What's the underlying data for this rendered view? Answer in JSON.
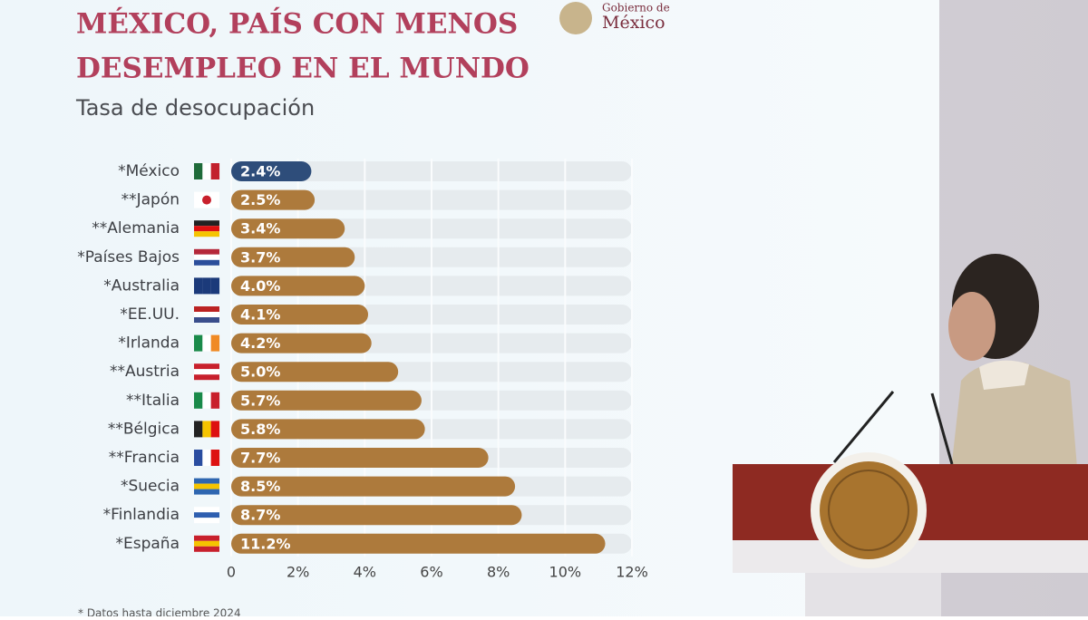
{
  "chart_data": {
    "type": "bar",
    "orientation": "horizontal",
    "title": [
      "MÉXICO, PAÍS CON MENOS",
      "DESEMPLEO EN EL MUNDO"
    ],
    "subtitle": "Tasa de desocupación",
    "logo": [
      "Gobierno de",
      "México"
    ],
    "categories": [
      "*México",
      "**Japón",
      "**Alemania",
      "*Países Bajos",
      "*Australia",
      "*EE.UU.",
      "*Irlanda",
      "**Austria",
      "**Italia",
      "**Bélgica",
      "**Francia",
      "*Suecia",
      "*Finlandia",
      "*España"
    ],
    "values": [
      2.4,
      2.5,
      3.4,
      3.7,
      4.0,
      4.1,
      4.2,
      5.0,
      5.7,
      5.8,
      7.7,
      8.5,
      8.7,
      11.2
    ],
    "value_labels": [
      "2.4%",
      "2.5%",
      "3.4%",
      "3.7%",
      "4.0%",
      "4.1%",
      "4.2%",
      "5.0%",
      "5.7%",
      "5.8%",
      "7.7%",
      "8.5%",
      "8.7%",
      "11.2%"
    ],
    "colors": [
      "#2e4d7a",
      "#ad7a3c",
      "#ad7a3c",
      "#ad7a3c",
      "#ad7a3c",
      "#ad7a3c",
      "#ad7a3c",
      "#ad7a3c",
      "#ad7a3c",
      "#ad7a3c",
      "#ad7a3c",
      "#ad7a3c",
      "#ad7a3c",
      "#ad7a3c"
    ],
    "xlim": [
      0,
      12
    ],
    "xticks": [
      0,
      {
        "value": 2,
        "label": "2%"
      },
      {
        "value": 4,
        "label": "4%"
      },
      {
        "value": 6,
        "label": "6%"
      },
      {
        "value": 8,
        "label": "8%"
      },
      {
        "value": 10,
        "label": "10%"
      },
      {
        "value": 12,
        "label": "12%"
      }
    ],
    "grid": true,
    "note": "* Datos hasta diciembre 2024"
  }
}
